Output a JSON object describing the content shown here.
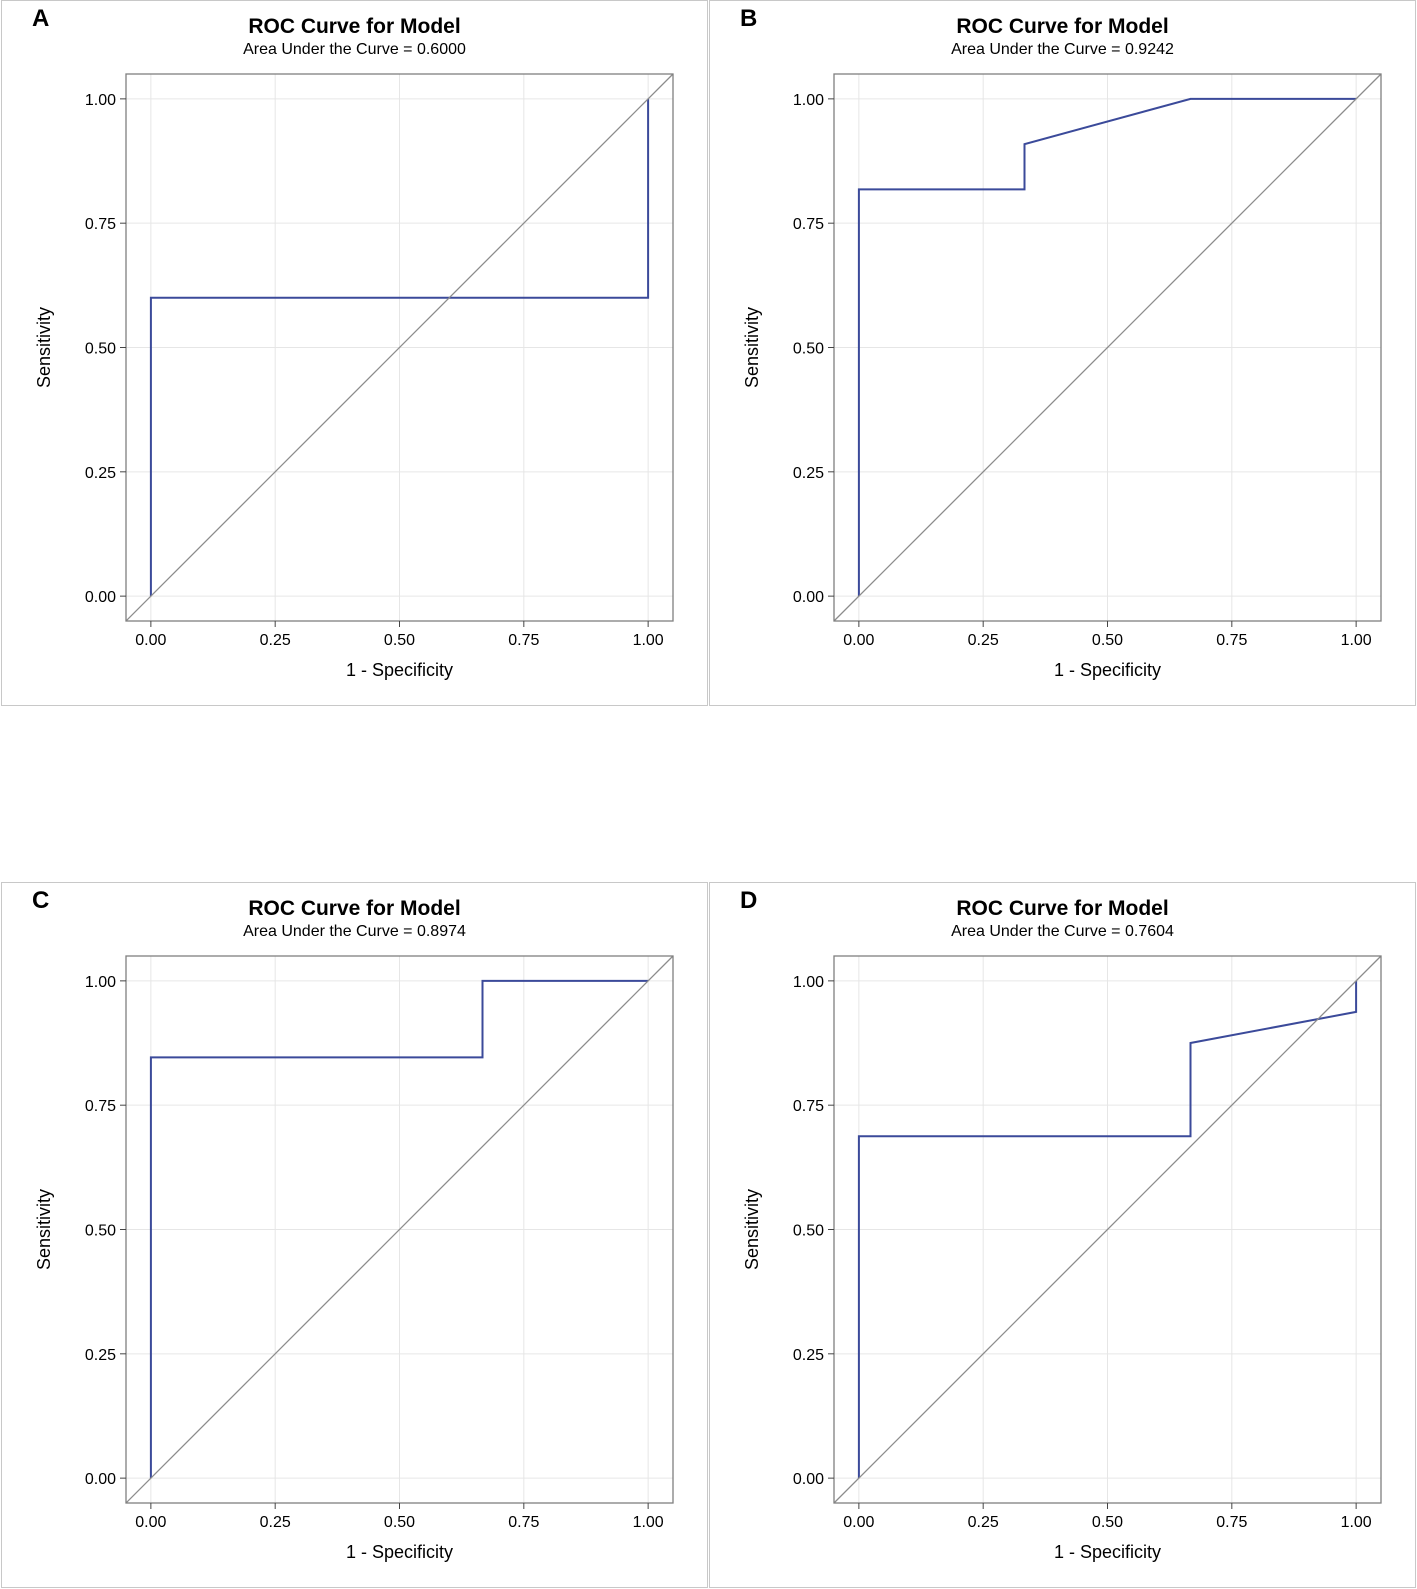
{
  "colors": {
    "curve": "#3b4a9a",
    "diagonal": "#8c8c8c",
    "grid": "#e6e6e6",
    "frame": "#7f7f7f"
  },
  "panels": [
    {
      "letter": "A",
      "title": "ROC Curve for Model",
      "subtitle": "Area Under the Curve = 0.6000",
      "xlabel": "1 - Specificity",
      "ylabel": "Sensitivity"
    },
    {
      "letter": "B",
      "title": "ROC Curve for Model",
      "subtitle": "Area Under the Curve = 0.9242",
      "xlabel": "1 - Specificity",
      "ylabel": "Sensitivity"
    },
    {
      "letter": "C",
      "title": "ROC Curve for Model",
      "subtitle": "Area Under the Curve = 0.8974",
      "xlabel": "1 - Specificity",
      "ylabel": "Sensitivity"
    },
    {
      "letter": "D",
      "title": "ROC Curve for Model",
      "subtitle": "Area Under the Curve = 0.7604",
      "xlabel": "1 - Specificity",
      "ylabel": "Sensitivity"
    }
  ],
  "chart_data": [
    {
      "type": "line",
      "title": "ROC Curve for Model",
      "subtitle": "Area Under the Curve = 0.6000",
      "xlabel": "1 - Specificity",
      "ylabel": "Sensitivity",
      "xlim": [
        -0.05,
        1.05
      ],
      "ylim": [
        -0.05,
        1.05
      ],
      "xticks": [
        "0.00",
        "0.25",
        "0.50",
        "0.75",
        "1.00"
      ],
      "yticks": [
        "0.00",
        "0.25",
        "0.50",
        "0.75",
        "1.00"
      ],
      "grid": true,
      "series": [
        {
          "name": "ROC",
          "x": [
            0,
            0,
            1,
            1
          ],
          "y": [
            0,
            0.6,
            0.6,
            1
          ]
        },
        {
          "name": "Reference",
          "x": [
            -0.05,
            1.05
          ],
          "y": [
            -0.05,
            1.05
          ]
        }
      ]
    },
    {
      "type": "line",
      "title": "ROC Curve for Model",
      "subtitle": "Area Under the Curve = 0.9242",
      "xlabel": "1 - Specificity",
      "ylabel": "Sensitivity",
      "xlim": [
        -0.05,
        1.05
      ],
      "ylim": [
        -0.05,
        1.05
      ],
      "xticks": [
        "0.00",
        "0.25",
        "0.50",
        "0.75",
        "1.00"
      ],
      "yticks": [
        "0.00",
        "0.25",
        "0.50",
        "0.75",
        "1.00"
      ],
      "grid": true,
      "series": [
        {
          "name": "ROC",
          "x": [
            0,
            0,
            0.333,
            0.333,
            0.667,
            1
          ],
          "y": [
            0,
            0.818,
            0.818,
            0.909,
            1,
            1
          ]
        },
        {
          "name": "Reference",
          "x": [
            -0.05,
            1.05
          ],
          "y": [
            -0.05,
            1.05
          ]
        }
      ]
    },
    {
      "type": "line",
      "title": "ROC Curve for Model",
      "subtitle": "Area Under the Curve = 0.8974",
      "xlabel": "1 - Specificity",
      "ylabel": "Sensitivity",
      "xlim": [
        -0.05,
        1.05
      ],
      "ylim": [
        -0.05,
        1.05
      ],
      "xticks": [
        "0.00",
        "0.25",
        "0.50",
        "0.75",
        "1.00"
      ],
      "yticks": [
        "0.00",
        "0.25",
        "0.50",
        "0.75",
        "1.00"
      ],
      "grid": true,
      "series": [
        {
          "name": "ROC",
          "x": [
            0,
            0,
            0.667,
            0.667,
            1
          ],
          "y": [
            0,
            0.846,
            0.846,
            1,
            1
          ]
        },
        {
          "name": "Reference",
          "x": [
            -0.05,
            1.05
          ],
          "y": [
            -0.05,
            1.05
          ]
        }
      ]
    },
    {
      "type": "line",
      "title": "ROC Curve for Model",
      "subtitle": "Area Under the Curve = 0.7604",
      "xlabel": "1 - Specificity",
      "ylabel": "Sensitivity",
      "xlim": [
        -0.05,
        1.05
      ],
      "ylim": [
        -0.05,
        1.05
      ],
      "xticks": [
        "0.00",
        "0.25",
        "0.50",
        "0.75",
        "1.00"
      ],
      "yticks": [
        "0.00",
        "0.25",
        "0.50",
        "0.75",
        "1.00"
      ],
      "grid": true,
      "series": [
        {
          "name": "ROC",
          "x": [
            0,
            0,
            0.667,
            0.667,
            1,
            1
          ],
          "y": [
            0,
            0.6875,
            0.6875,
            0.875,
            0.9375,
            1
          ]
        },
        {
          "name": "Reference",
          "x": [
            -0.05,
            1.05
          ],
          "y": [
            -0.05,
            1.05
          ]
        }
      ]
    }
  ]
}
